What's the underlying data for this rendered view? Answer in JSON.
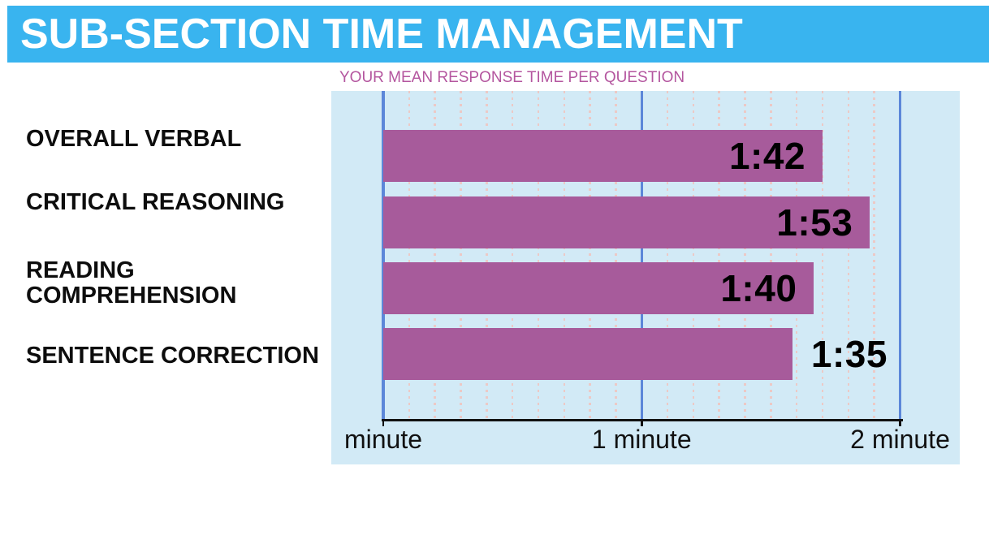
{
  "header": {
    "title": "SUB-SECTION TIME MANAGEMENT"
  },
  "subtitle": {
    "text": "YOUR MEAN RESPONSE TIME PER QUESTION"
  },
  "colors": {
    "banner_bg": "#39b4ef",
    "plot_bg": "#d2eaf6",
    "bar": "#a75b9b",
    "major_gridline": "#5c87d9",
    "minor_gridline": "#ecc9c6",
    "subtitle": "#b4569f",
    "axis": "#111111",
    "title_text": "#ffffff",
    "label_text": "#0d0d0d"
  },
  "chart_data": {
    "type": "bar",
    "orientation": "horizontal",
    "title": "YOUR MEAN RESPONSE TIME PER QUESTION",
    "categories": [
      "OVERALL VERBAL",
      "CRITICAL REASONING",
      "READING COMPREHENSION",
      "SENTENCE CORRECTION"
    ],
    "values": [
      "1:42",
      "1:53",
      "1:40",
      "1:35"
    ],
    "values_seconds": [
      102,
      113,
      100,
      95
    ],
    "x_axis": {
      "tick_labels": [
        "minute",
        "1 minute",
        "2 minute"
      ],
      "tick_values_minutes": [
        0,
        1,
        2
      ],
      "range_minutes": [
        0,
        2.23
      ],
      "minor_grid_step_minutes": 0.1,
      "grid": "on"
    },
    "rows": [
      {
        "label_lines": [
          "OVERALL VERBAL"
        ],
        "value": "1:42",
        "seconds": 102,
        "value_inside_bar": true
      },
      {
        "label_lines": [
          "CRITICAL REASONING"
        ],
        "value": "1:53",
        "seconds": 113,
        "value_inside_bar": true
      },
      {
        "label_lines": [
          "READING",
          "COMPREHENSION"
        ],
        "value": "1:40",
        "seconds": 100,
        "value_inside_bar": true
      },
      {
        "label_lines": [
          "SENTENCE CORRECTION"
        ],
        "value": "1:35",
        "seconds": 95,
        "value_inside_bar": false
      }
    ]
  }
}
